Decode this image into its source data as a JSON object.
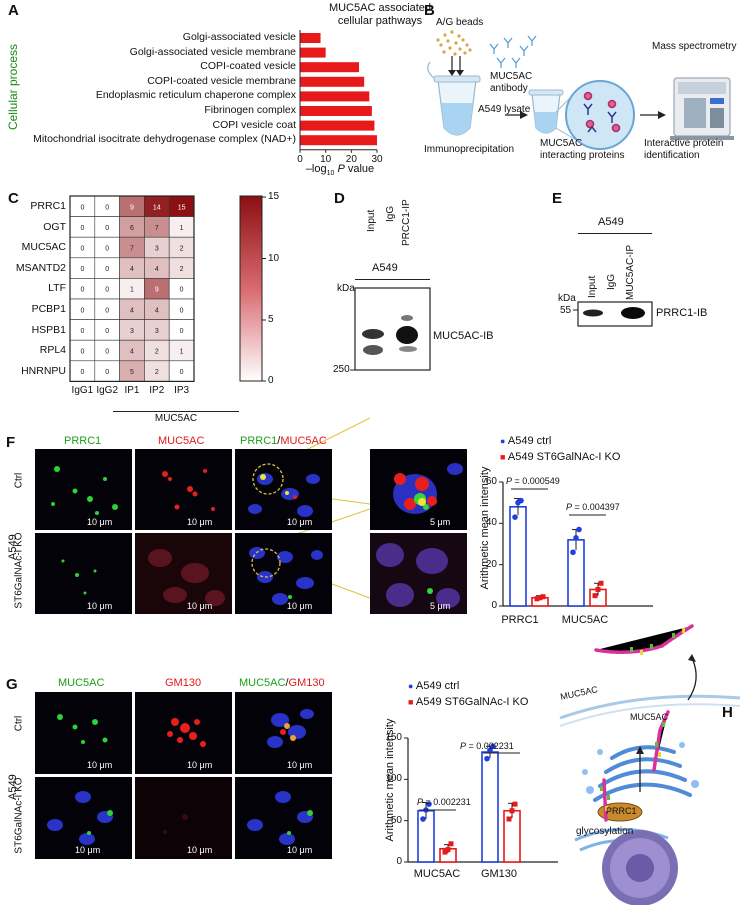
{
  "panels": {
    "A": "A",
    "B": "B",
    "C": "C",
    "D": "D",
    "E": "E",
    "F": "F",
    "G": "G",
    "H": "H"
  },
  "panelA": {
    "title_line1": "MUC5AC associated",
    "title_line2": "cellular pathways",
    "side_label": "Cellular process",
    "xlabel_prefix": "–log",
    "xlabel_sub": "10",
    "xlabel_p": "P",
    "xlabel_suffix": "value",
    "ticks": [
      "0",
      "10",
      "20",
      "30"
    ],
    "bar_color": "#e8191a"
  },
  "panelB": {
    "beads": "A/G beads",
    "antibody_line1": "MUC5AC",
    "antibody_line2": "antibody",
    "lysate": "A549 lysate",
    "ip": "Immunoprecipitation",
    "interacting_line1": "MUC5AC",
    "interacting_line2": "interacting proteins",
    "ms": "Mass spectrometry",
    "identification_line1": "Interactive protein",
    "identification_line2": "identification"
  },
  "panelC": {
    "rows": [
      "PRRC1",
      "OGT",
      "MUC5AC",
      "MSANTD2",
      "LTF",
      "PCBP1",
      "HSPB1",
      "RPL4",
      "HNRNPU"
    ],
    "cols": [
      "IgG1",
      "IgG2",
      "IP1",
      "IP2",
      "IP3"
    ],
    "group_label": "MUC5AC",
    "colorbar_ticks": [
      "15",
      "10",
      "5",
      "0"
    ]
  },
  "panelD": {
    "cell": "A549",
    "lanes": [
      "Input",
      "IgG",
      "PRCC1-IP"
    ],
    "kda": "kDa",
    "marker": "250",
    "band_label": "MUC5AC-IB"
  },
  "panelE": {
    "cell": "A549",
    "lanes": [
      "Input",
      "IgG",
      "MUC5AC-IP"
    ],
    "kda": "kDa",
    "marker": "55",
    "band_label": "PRRC1-IB"
  },
  "panelF": {
    "col_labels": {
      "c1": "PRRC1",
      "c2": "MUC5AC",
      "c3a": "PRRC1",
      "c3sep": "/",
      "c3b": "MUC5AC"
    },
    "row_labels": {
      "ctrl": "Ctrl",
      "ko": "ST6GalNAc-I KO",
      "cell": "A549"
    },
    "scale_10": "10 μm",
    "scale_5": "5 μm",
    "legend_ctrl": "A549 ctrl",
    "legend_ko": "A549 ST6GalNAc-I KO",
    "ylabel": "Arithmetic mean intensity",
    "yticks": [
      "0",
      "20",
      "40",
      "60"
    ],
    "categories": [
      "PRRC1",
      "MUC5AC"
    ],
    "p1_prefix": "P",
    "p1_value": " = 0.000549",
    "p2_prefix": "P",
    "p2_value": " = 0.004397",
    "color_ctrl": "#1f3fe0",
    "color_ko": "#e81919"
  },
  "panelG": {
    "col_labels": {
      "c1": "MUC5AC",
      "c2": "GM130",
      "c3a": "MUC5AC",
      "c3sep": "/",
      "c3b": "GM130"
    },
    "row_labels": {
      "ctrl": "Ctrl",
      "ko": "ST6GalNAc-I KO",
      "cell": "A549"
    },
    "scale_10": "10 μm",
    "legend_ctrl": "A549 ctrl",
    "legend_ko": "A549 ST6GalNAc-I KO",
    "ylabel": "Arithmetic mean intensity",
    "yticks": [
      "0",
      "50",
      "100",
      "150"
    ],
    "categories": [
      "MUC5AC",
      "GM130"
    ],
    "p1_prefix": "P",
    "p1_value": " = 0.002231",
    "p2_prefix": "P",
    "p2_value": " = 0.002231"
  },
  "panelH": {
    "muc_top": "MUC5AC",
    "muc_mid": "MUC5AC",
    "prrc1": "PRRC1",
    "glyco": "glycosylation"
  },
  "chart_data": [
    {
      "type": "bar",
      "orientation": "horizontal",
      "title": "MUC5AC associated cellular pathways",
      "xlabel": "–log10 P value",
      "ylabel": "Cellular process",
      "categories": [
        "Golgi-associated vesicle",
        "Golgi-associated vesicle membrane",
        "COPI-coated vesicle",
        "COPI-coated vesicle membrane",
        "Endoplasmic reticulum chaperone complex",
        "Fibrinogen complex",
        "COPI vesicle coat",
        "Mitochondrial isocitrate dehydrogenase complex (NAD+)"
      ],
      "values": [
        8,
        10,
        23,
        25,
        27,
        28,
        29,
        30
      ],
      "xlim": [
        0,
        30
      ]
    },
    {
      "type": "heatmap",
      "rows": [
        "PRRC1",
        "OGT",
        "MUC5AC",
        "MSANTD2",
        "LTF",
        "PCBP1",
        "HSPB1",
        "RPL4",
        "HNRNPU"
      ],
      "cols": [
        "IgG1",
        "IgG2",
        "IP1",
        "IP2",
        "IP3"
      ],
      "values": [
        [
          0,
          0,
          9,
          14,
          15
        ],
        [
          0,
          0,
          6,
          7,
          1
        ],
        [
          0,
          0,
          7,
          3,
          2
        ],
        [
          0,
          0,
          4,
          4,
          2
        ],
        [
          0,
          0,
          1,
          9,
          0
        ],
        [
          0,
          0,
          4,
          4,
          0
        ],
        [
          0,
          0,
          3,
          3,
          0
        ],
        [
          0,
          0,
          4,
          2,
          1
        ],
        [
          0,
          0,
          5,
          2,
          0
        ]
      ],
      "range": [
        0,
        15
      ]
    },
    {
      "type": "bar",
      "ylabel": "Arithmetic mean intensity",
      "categories": [
        "PRRC1",
        "MUC5AC"
      ],
      "ylim": [
        0,
        60
      ],
      "series": [
        {
          "name": "A549 ctrl",
          "values": [
            48,
            32
          ],
          "error": [
            4,
            5
          ],
          "points": [
            [
              43,
              50,
              51
            ],
            [
              26,
              33,
              37
            ]
          ]
        },
        {
          "name": "A549 ST6GalNAc-I KO",
          "values": [
            4,
            8
          ],
          "error": [
            1,
            3
          ],
          "points": [
            [
              3.5,
              4,
              4.5
            ],
            [
              5,
              8,
              11
            ]
          ]
        }
      ]
    },
    {
      "type": "bar",
      "ylabel": "Arithmetic mean intensity",
      "categories": [
        "MUC5AC",
        "GM130"
      ],
      "ylim": [
        0,
        150
      ],
      "series": [
        {
          "name": "A549 ctrl",
          "values": [
            62,
            133
          ],
          "error": [
            10,
            7
          ],
          "points": [
            [
              52,
              63,
              70
            ],
            [
              125,
              135,
              140
            ]
          ]
        },
        {
          "name": "A549 ST6GalNAc-I KO",
          "values": [
            16,
            62
          ],
          "error": [
            5,
            9
          ],
          "points": [
            [
              12,
              15,
              22
            ],
            [
              52,
              62,
              70
            ]
          ]
        }
      ]
    }
  ]
}
